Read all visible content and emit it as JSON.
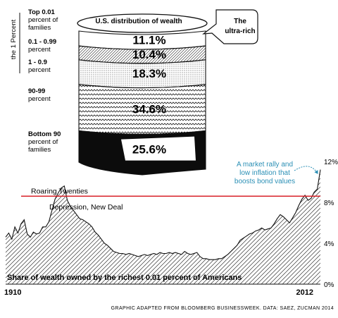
{
  "colors": {
    "ink": "#111111",
    "threshold_line": "#d8232a",
    "annotation": "#2a8fb5",
    "paper": "#ffffff"
  },
  "chart_data": [
    {
      "type": "stacked-column",
      "title": "U.S. distribution of wealth",
      "side_label": "the 1 Percent",
      "callout": [
        "The",
        "ultra-rich"
      ],
      "segments": [
        {
          "label": [
            "Top 0.01",
            "percent of",
            "families"
          ],
          "value_label": "11.1%",
          "value": 11.1,
          "pattern": "white"
        },
        {
          "label": [
            "0.1 - 0.99",
            "percent"
          ],
          "value_label": "10.4%",
          "value": 10.4,
          "pattern": "diagonal"
        },
        {
          "label": [
            "1 - 0.9",
            "percent"
          ],
          "value_label": "18.3%",
          "value": 18.3,
          "pattern": "dots"
        },
        {
          "label": [
            "90-99",
            "percent"
          ],
          "value_label": "34.6%",
          "value": 34.6,
          "pattern": "zigzag"
        },
        {
          "label": [
            "Bottom 90",
            "percent of",
            "families"
          ],
          "value_label": "25.6%",
          "value": 25.6,
          "pattern": "black"
        }
      ]
    },
    {
      "type": "area",
      "title": "Share of wealth owned by the richest 0.01 percent of Americans",
      "x_tick_labels": [
        "1910",
        "2012"
      ],
      "xlim": [
        1910,
        2012
      ],
      "y_ticks": [
        0,
        4,
        8,
        12
      ],
      "y_tick_labels": [
        "0%",
        "4%",
        "8%",
        "12%"
      ],
      "ylim": [
        0,
        12
      ],
      "grid": false,
      "reference_line": {
        "y": 8.6,
        "label": "Roaring Twenties"
      },
      "annotations": [
        {
          "text": [
            "Depression, New Deal"
          ]
        },
        {
          "text": [
            "A market rally and",
            "low inflation that",
            "boosts bond values"
          ]
        }
      ],
      "x": [
        1910,
        1911,
        1912,
        1913,
        1914,
        1915,
        1916,
        1917,
        1918,
        1919,
        1920,
        1921,
        1922,
        1923,
        1924,
        1925,
        1926,
        1927,
        1928,
        1929,
        1930,
        1931,
        1932,
        1933,
        1934,
        1935,
        1936,
        1937,
        1938,
        1939,
        1940,
        1941,
        1942,
        1943,
        1944,
        1945,
        1946,
        1947,
        1948,
        1949,
        1950,
        1951,
        1952,
        1953,
        1954,
        1955,
        1956,
        1957,
        1958,
        1959,
        1960,
        1961,
        1962,
        1963,
        1964,
        1965,
        1966,
        1967,
        1968,
        1969,
        1970,
        1971,
        1972,
        1973,
        1974,
        1975,
        1976,
        1977,
        1978,
        1979,
        1980,
        1981,
        1982,
        1983,
        1984,
        1985,
        1986,
        1987,
        1988,
        1989,
        1990,
        1991,
        1992,
        1993,
        1994,
        1995,
        1996,
        1997,
        1998,
        1999,
        2000,
        2001,
        2002,
        2003,
        2004,
        2005,
        2006,
        2007,
        2008,
        2009,
        2010,
        2011,
        2012
      ],
      "values": [
        4.6,
        5.0,
        4.4,
        5.6,
        5.0,
        5.9,
        6.3,
        4.9,
        4.6,
        5.1,
        4.9,
        5.0,
        5.6,
        5.6,
        6.1,
        7.2,
        8.3,
        8.9,
        9.4,
        9.6,
        8.2,
        7.6,
        7.2,
        6.8,
        6.4,
        6.3,
        6.1,
        5.9,
        5.6,
        5.1,
        4.8,
        4.4,
        4.0,
        3.8,
        3.5,
        3.2,
        3.1,
        3.0,
        3.0,
        2.9,
        3.0,
        2.9,
        2.8,
        2.7,
        2.8,
        2.9,
        2.8,
        2.9,
        3.0,
        2.9,
        3.1,
        3.0,
        3.0,
        3.1,
        3.0,
        3.1,
        3.0,
        2.9,
        3.2,
        3.0,
        2.9,
        3.0,
        3.1,
        2.7,
        2.5,
        2.5,
        2.4,
        2.4,
        2.4,
        2.5,
        2.5,
        2.7,
        2.9,
        3.2,
        3.5,
        3.8,
        4.3,
        4.5,
        4.7,
        4.9,
        5.0,
        5.2,
        5.3,
        5.5,
        5.3,
        5.4,
        5.5,
        5.9,
        6.4,
        6.8,
        6.6,
        6.3,
        6.0,
        6.5,
        7.0,
        7.7,
        8.3,
        8.7,
        8.2,
        8.4,
        9.0,
        9.3,
        11.2
      ]
    }
  ],
  "source": "GRAPHIC ADAPTED FROM BLOOMBERG BUSINESSWEEK. DATA: SAEZ, ZUCMAN 2014"
}
